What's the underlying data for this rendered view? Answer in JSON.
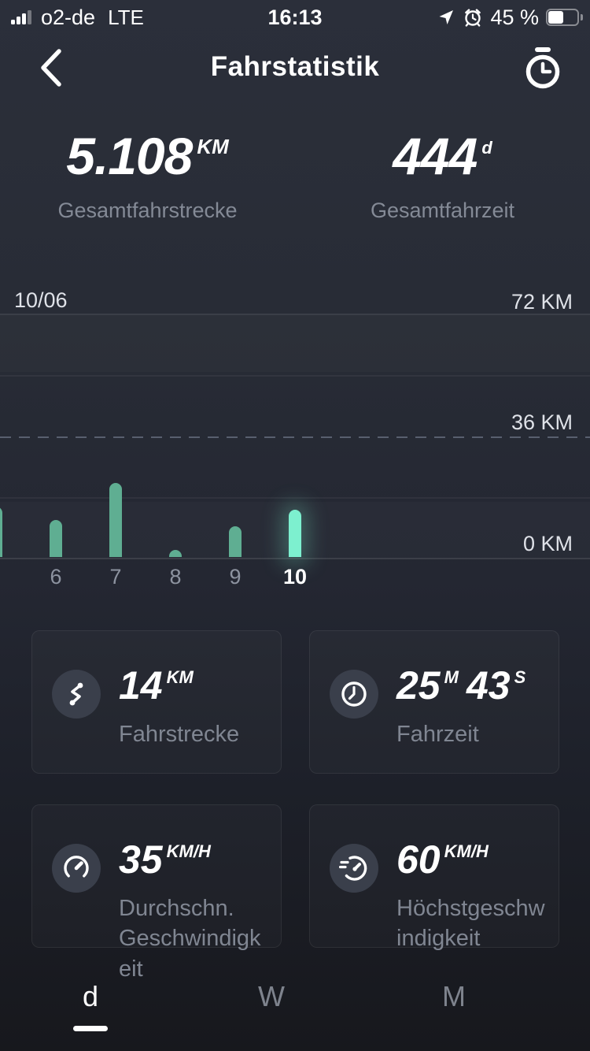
{
  "status_bar": {
    "carrier": "o2-de",
    "network": "LTE",
    "time": "16:13",
    "battery_percent": "45 %",
    "battery_level": 0.45,
    "icons": [
      "signal-bars-icon",
      "location-arrow-icon",
      "alarm-clock-icon",
      "battery-icon"
    ]
  },
  "header": {
    "title": "Fahrstatistik",
    "icons": [
      "back-chevron-icon",
      "stopwatch-icon"
    ]
  },
  "totals": {
    "distance": {
      "value": "5.108",
      "unit": "KM",
      "label": "Gesamtfahrstrecke"
    },
    "time": {
      "value": "444",
      "unit": "d",
      "label": "Gesamtfahrzeit"
    }
  },
  "chart_data": {
    "type": "bar",
    "date_label": "10/06",
    "unit": "KM",
    "ylim": [
      0,
      72
    ],
    "grid": "horizontal lines, dashed at mid, right-side labels",
    "gridlines": [
      {
        "value": 72,
        "label": "72 KM",
        "style": "solid"
      },
      {
        "value": 54,
        "label": "",
        "style": "solid-faint"
      },
      {
        "value": 36,
        "label": "36 KM",
        "style": "dashed"
      },
      {
        "value": 18,
        "label": "",
        "style": "solid-faint"
      },
      {
        "value": 0,
        "label": "0 KM",
        "style": "solid"
      }
    ],
    "bars": [
      {
        "label": "",
        "value": 15,
        "partial": true,
        "selected": false
      },
      {
        "label": "6",
        "value": 11,
        "partial": false,
        "selected": false
      },
      {
        "label": "7",
        "value": 22,
        "partial": false,
        "selected": false
      },
      {
        "label": "8",
        "value": 2,
        "partial": false,
        "selected": false
      },
      {
        "label": "9",
        "value": 9,
        "partial": false,
        "selected": false
      },
      {
        "label": "10",
        "value": 14,
        "partial": false,
        "selected": true
      }
    ],
    "colors": {
      "bar": "#5fae92",
      "selected_bar": "#7df0cf"
    }
  },
  "cards": [
    {
      "icon": "route-icon",
      "value": "14",
      "unit": "KM",
      "value2": "",
      "unit2": "",
      "label": "Fahrstrecke"
    },
    {
      "icon": "clock-icon",
      "value": "25",
      "unit": "M",
      "value2": "43",
      "unit2": "S",
      "label": "Fahrzeit"
    },
    {
      "icon": "speedometer-icon",
      "value": "35",
      "unit": "KM/H",
      "value2": "",
      "unit2": "",
      "label": "Durchschn. Geschwindigkeit"
    },
    {
      "icon": "max-speed-icon",
      "value": "60",
      "unit": "KM/H",
      "value2": "",
      "unit2": "",
      "label": "Höchstgeschwindigkeit"
    }
  ],
  "tabs": [
    {
      "label": "d",
      "selected": true
    },
    {
      "label": "W",
      "selected": false
    },
    {
      "label": "M",
      "selected": false
    }
  ],
  "colors": {
    "background_top": "#2b2f3a",
    "background_bottom": "#17181d",
    "accent_mint": "#7df0cf",
    "bar_teal": "#5fae92",
    "muted_text": "#848a96",
    "white_text": "#ffffff"
  }
}
